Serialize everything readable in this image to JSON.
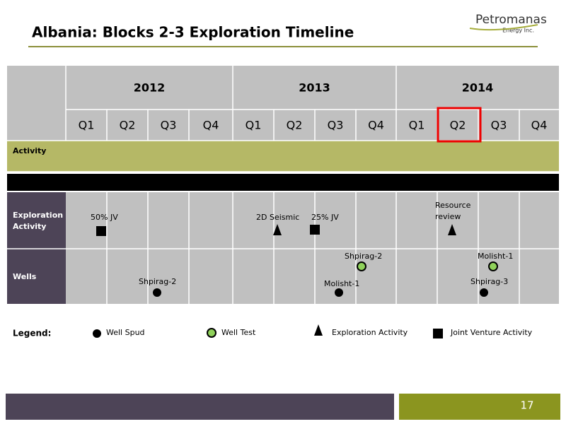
{
  "header": {
    "title": "Albania: Blocks 2-3 Exploration Timeline",
    "logo_name": "Petromanas",
    "logo_sub": "Energy Inc."
  },
  "table": {
    "years": [
      "2012",
      "2013",
      "2014"
    ],
    "quarters": [
      "Q1",
      "Q2",
      "Q3",
      "Q4",
      "Q1",
      "Q2",
      "Q3",
      "Q4",
      "Q1",
      "Q2",
      "Q3",
      "Q4"
    ],
    "activity": "Activity",
    "exploration_lines": [
      "Exploration",
      "Activity"
    ],
    "wells": "Wells"
  },
  "events": {
    "jv_2012": "50% JV",
    "seismic": "2D Seismic",
    "jv_2013": "25% JV",
    "resource_lines": [
      "Resource",
      "review"
    ],
    "spud_shpirag2": "Shpirag-2",
    "test_shpirag2": "Shpirag-2",
    "spud_molisht1": "Molisht-1",
    "test_molisht1": "Molisht-1",
    "spud_shpirag3": "Shpirag-3"
  },
  "legend": {
    "title": "Legend:",
    "items": [
      "Well Spud",
      "Well Test",
      "Exploration Activity",
      "Joint Venture Activity"
    ]
  },
  "footer": {
    "page": "17"
  }
}
